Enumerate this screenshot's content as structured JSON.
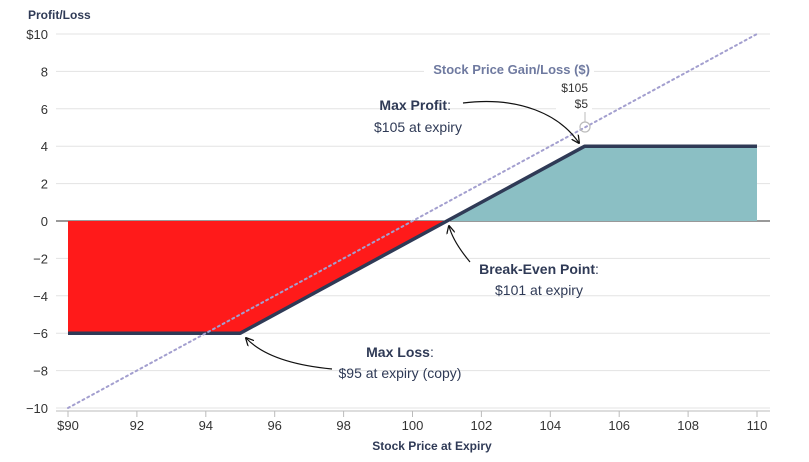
{
  "chart_data": {
    "type": "area",
    "title": "",
    "xlabel": "Stock Price at Expiry",
    "ylabel": "Profit/Loss",
    "xlim": [
      90,
      110
    ],
    "ylim": [
      -10,
      10
    ],
    "x_ticks": [
      "$90",
      "92",
      "94",
      "96",
      "98",
      "100",
      "102",
      "104",
      "106",
      "108",
      "110"
    ],
    "y_ticks": [
      "$10",
      "8",
      "6",
      "4",
      "2",
      "0",
      "−2",
      "−4",
      "−6",
      "−8",
      "−10"
    ],
    "grid": "horizontal",
    "series": [
      {
        "name": "",
        "type": "line-area",
        "x": [
          90,
          95,
          105,
          110
        ],
        "y": [
          -6,
          -6,
          4,
          4
        ],
        "color": "#2f3a56",
        "loss_fill": "#ff1a1a",
        "profit_fill": "#8bbfc4"
      },
      {
        "name": "Stock Price Gain/Loss ($)",
        "type": "dotted-line",
        "x": [
          90,
          110
        ],
        "y": [
          -10,
          10
        ],
        "color": "#a39fcf"
      }
    ],
    "tooltip": {
      "x_label": "$105",
      "y_label": "$5"
    },
    "annotations": [
      {
        "title": "Max Profit",
        "text": "$105 at expiry",
        "x": 105,
        "y": 4
      },
      {
        "title": "Break-Even Point",
        "text": "$101 at expiry",
        "x": 101,
        "y": 0
      },
      {
        "title": "Max Loss",
        "text": "$95 at expiry (copy)",
        "x": 95,
        "y": -6
      }
    ]
  }
}
